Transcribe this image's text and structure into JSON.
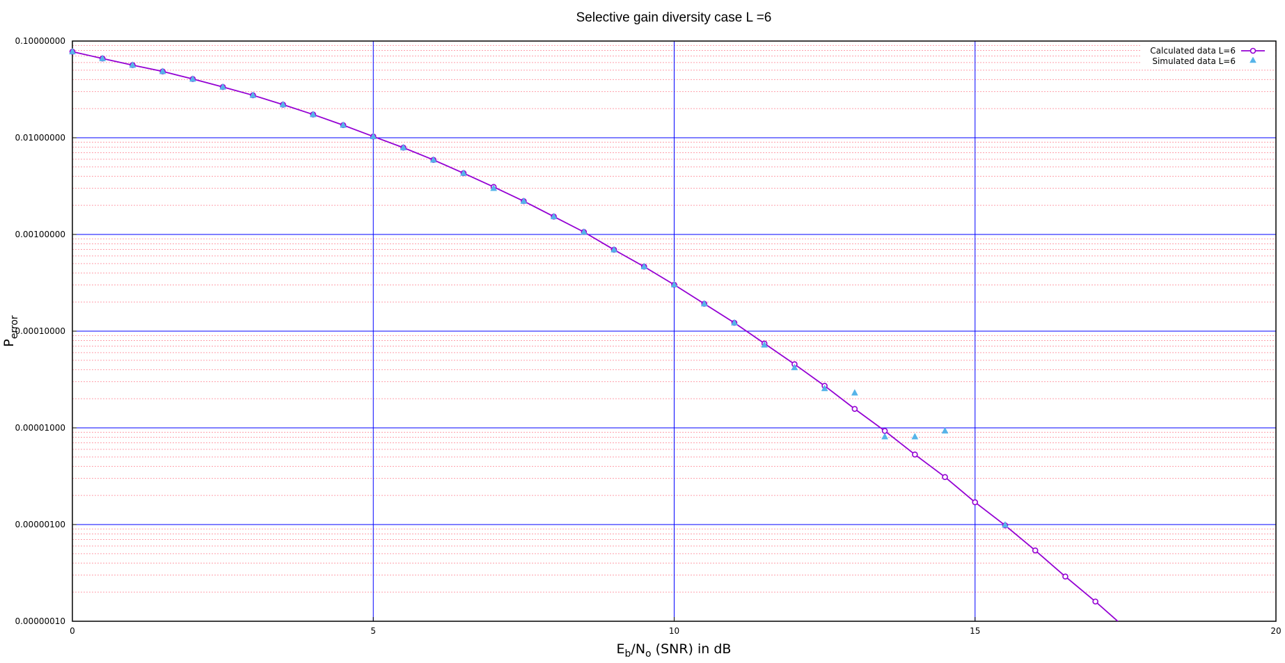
{
  "chart_data": {
    "type": "line",
    "title": "Selective gain diversity case L =6",
    "xlabel_main": "E",
    "xlabel_sub1": "b",
    "xlabel_mid": "/N",
    "xlabel_sub2": "o",
    "xlabel_tail": " (SNR) in dB",
    "ylabel_main": "P",
    "ylabel_sub": "error",
    "xlim": [
      0,
      20
    ],
    "ylim": [
      1e-07,
      0.1
    ],
    "yscale": "log",
    "x_ticks": [
      0,
      5,
      10,
      15,
      20
    ],
    "x_tick_labels": [
      "0",
      "5",
      "10",
      "15",
      "20"
    ],
    "y_ticks": [
      1e-07,
      1e-06,
      1e-05,
      0.0001,
      0.001,
      0.01,
      0.1
    ],
    "y_tick_labels": [
      "0.00000010",
      "0.00000100",
      "0.00001000",
      "0.00010000",
      "0.00100000",
      "0.01000000",
      "0.10000000"
    ],
    "grid": true,
    "legend_position": "top-right",
    "colors": {
      "calculated": "#9400d3",
      "simulated": "#56b4e9",
      "major_grid": "#0000ff",
      "minor_grid": "#ff9eaa"
    },
    "series": [
      {
        "name": "Calculated data L=6",
        "marker": "circle",
        "x": [
          0,
          0.5,
          1,
          1.5,
          2,
          2.5,
          3,
          3.5,
          4,
          4.5,
          5,
          5.5,
          6,
          6.5,
          7,
          7.5,
          8,
          8.5,
          9,
          9.5,
          10,
          10.5,
          11,
          11.5,
          12,
          12.5,
          13,
          13.5,
          14,
          14.5,
          15,
          15.5,
          16,
          16.5,
          17,
          17.5
        ],
        "values": [
          0.0776,
          0.066,
          0.0564,
          0.0485,
          0.0405,
          0.0335,
          0.0275,
          0.022,
          0.0174,
          0.0135,
          0.0103,
          0.0079,
          0.0059,
          0.0043,
          0.0031,
          0.00221,
          0.00153,
          0.00106,
          0.000695,
          0.000465,
          0.000302,
          0.000192,
          0.000122,
          7.45e-05,
          4.55e-05,
          2.72e-05,
          1.57e-05,
          9.3e-06,
          5.3e-06,
          3.1e-06,
          1.7e-06,
          9.8e-07,
          5.4e-07,
          2.9e-07,
          1.6e-07,
          8.5e-08
        ]
      },
      {
        "name": "Simulated data L=6",
        "marker": "triangle",
        "x": [
          0,
          0.5,
          1,
          1.5,
          2,
          2.5,
          3,
          3.5,
          4,
          4.5,
          5,
          5.5,
          6,
          6.5,
          7,
          7.5,
          8,
          8.5,
          9,
          9.5,
          10,
          10.5,
          11,
          11.5,
          12,
          12.5,
          13,
          13.5,
          14,
          14.5,
          15.5
        ],
        "values": [
          0.0776,
          0.066,
          0.0564,
          0.0485,
          0.0405,
          0.0335,
          0.0275,
          0.022,
          0.0174,
          0.0135,
          0.0103,
          0.0079,
          0.0059,
          0.0043,
          0.003,
          0.00221,
          0.00153,
          0.00106,
          0.000695,
          0.000465,
          0.000302,
          0.000192,
          0.000122,
          7.2e-05,
          4.2e-05,
          2.55e-05,
          2.3e-05,
          8.1e-06,
          8.1e-06,
          9.3e-06,
          9.9e-07
        ]
      }
    ]
  }
}
